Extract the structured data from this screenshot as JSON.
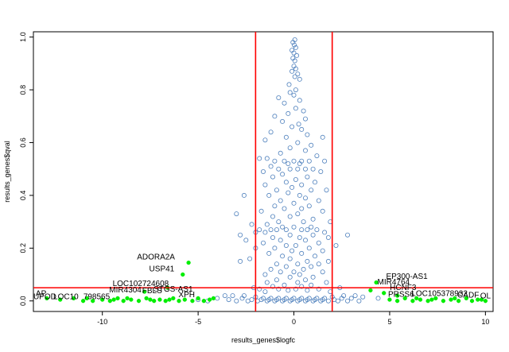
{
  "chart_data": {
    "type": "scatter",
    "title": "",
    "xlabel": "results_genes$logfc",
    "ylabel": "results_genes$qval",
    "xlim": [
      -13.6,
      10.4
    ],
    "ylim": [
      -0.04,
      1.02
    ],
    "x_ticks": [
      -10,
      -5,
      0,
      5,
      10
    ],
    "y_ticks": [
      0.0,
      0.2,
      0.4,
      0.6,
      0.8,
      1.0
    ],
    "x_tick_labels": [
      "-10",
      "-5",
      "0",
      "5",
      "10"
    ],
    "y_tick_labels": [
      "0.0",
      "0.2",
      "0.4",
      "0.6",
      "0.8",
      "1.0"
    ],
    "grid": false,
    "threshold_lines": {
      "logfc": [
        -2,
        2
      ],
      "qval": 0.05,
      "color": "#ff0000"
    },
    "series": [
      {
        "color": "#4f81bd",
        "points": [
          [
            0.05,
            0.99
          ],
          [
            -0.05,
            0.98
          ],
          [
            0.02,
            0.97
          ],
          [
            0.1,
            0.96
          ],
          [
            -0.1,
            0.95
          ],
          [
            0.0,
            0.94
          ],
          [
            0.15,
            0.93
          ],
          [
            -0.05,
            0.92
          ],
          [
            0.05,
            0.91
          ],
          [
            0.0,
            0.89
          ],
          [
            0.1,
            0.88
          ],
          [
            -0.1,
            0.87
          ],
          [
            0.2,
            0.86
          ],
          [
            0.05,
            0.85
          ],
          [
            0.3,
            0.84
          ],
          [
            -0.25,
            0.82
          ],
          [
            0.1,
            0.8
          ],
          [
            -0.2,
            0.79
          ],
          [
            0.0,
            0.78
          ],
          [
            -0.8,
            0.77
          ],
          [
            0.3,
            0.76
          ],
          [
            -0.5,
            0.75
          ],
          [
            0.1,
            0.73
          ],
          [
            0.5,
            0.72
          ],
          [
            -0.3,
            0.71
          ],
          [
            -1.0,
            0.7
          ],
          [
            0.6,
            0.69
          ],
          [
            -0.6,
            0.68
          ],
          [
            0.25,
            0.67
          ],
          [
            -0.1,
            0.66
          ],
          [
            0.4,
            0.65
          ],
          [
            -1.2,
            0.64
          ],
          [
            0.7,
            0.63
          ],
          [
            -0.4,
            0.62
          ],
          [
            1.5,
            0.62
          ],
          [
            -1.5,
            0.61
          ],
          [
            0.2,
            0.6
          ],
          [
            0.9,
            0.59
          ],
          [
            -0.2,
            0.58
          ],
          [
            0.6,
            0.57
          ],
          [
            -0.7,
            0.56
          ],
          [
            1.2,
            0.55
          ],
          [
            -1.4,
            0.54
          ],
          [
            -1.0,
            0.53
          ],
          [
            -0.5,
            0.53
          ],
          [
            0.0,
            0.53
          ],
          [
            0.4,
            0.53
          ],
          [
            0.8,
            0.53
          ],
          [
            1.6,
            0.53
          ],
          [
            -1.8,
            0.54
          ],
          [
            -0.3,
            0.52
          ],
          [
            0.3,
            0.52
          ],
          [
            -1.2,
            0.51
          ],
          [
            -0.8,
            0.5
          ],
          [
            -0.2,
            0.5
          ],
          [
            0.2,
            0.5
          ],
          [
            0.6,
            0.5
          ],
          [
            1.0,
            0.5
          ],
          [
            -1.6,
            0.49
          ],
          [
            1.4,
            0.49
          ],
          [
            -0.6,
            0.48
          ],
          [
            0.7,
            0.47
          ],
          [
            -1.1,
            0.47
          ],
          [
            0.1,
            0.46
          ],
          [
            -0.4,
            0.45
          ],
          [
            1.1,
            0.45
          ],
          [
            -1.5,
            0.44
          ],
          [
            0.4,
            0.44
          ],
          [
            -0.1,
            0.43
          ],
          [
            0.9,
            0.42
          ],
          [
            -0.9,
            0.42
          ],
          [
            1.7,
            0.42
          ],
          [
            -0.3,
            0.41
          ],
          [
            0.3,
            0.4
          ],
          [
            -1.3,
            0.4
          ],
          [
            -2.6,
            0.4
          ],
          [
            0.6,
            0.39
          ],
          [
            -0.7,
            0.38
          ],
          [
            1.3,
            0.38
          ],
          [
            0.0,
            0.37
          ],
          [
            -1.0,
            0.36
          ],
          [
            0.8,
            0.36
          ],
          [
            -0.5,
            0.35
          ],
          [
            0.4,
            0.35
          ],
          [
            -1.7,
            0.34
          ],
          [
            1.5,
            0.34
          ],
          [
            -3.0,
            0.33
          ],
          [
            0.2,
            0.33
          ],
          [
            -0.2,
            0.32
          ],
          [
            -1.1,
            0.32
          ],
          [
            1.0,
            0.31
          ],
          [
            -0.8,
            0.3
          ],
          [
            0.5,
            0.3
          ],
          [
            1.9,
            0.3
          ],
          [
            -1.4,
            0.29
          ],
          [
            -2.2,
            0.29
          ],
          [
            0.0,
            0.28
          ],
          [
            0.9,
            0.28
          ],
          [
            -0.6,
            0.28
          ],
          [
            -1.8,
            0.27
          ],
          [
            -1.2,
            0.27
          ],
          [
            -0.9,
            0.27
          ],
          [
            -0.4,
            0.27
          ],
          [
            0.4,
            0.27
          ],
          [
            0.7,
            0.27
          ],
          [
            1.2,
            0.27
          ],
          [
            -2.0,
            0.26
          ],
          [
            -1.5,
            0.26
          ],
          [
            1.6,
            0.26
          ],
          [
            -2.8,
            0.25
          ],
          [
            -0.2,
            0.25
          ],
          [
            1.0,
            0.25
          ],
          [
            2.8,
            0.25
          ],
          [
            -1.1,
            0.24
          ],
          [
            0.3,
            0.24
          ],
          [
            1.8,
            0.24
          ],
          [
            -2.5,
            0.23
          ],
          [
            -0.7,
            0.23
          ],
          [
            0.6,
            0.23
          ],
          [
            -1.6,
            0.22
          ],
          [
            1.3,
            0.22
          ],
          [
            0.1,
            0.21
          ],
          [
            -0.4,
            0.21
          ],
          [
            2.2,
            0.21
          ],
          [
            -2.0,
            0.2
          ],
          [
            -1.0,
            0.2
          ],
          [
            0.8,
            0.2
          ],
          [
            -0.1,
            0.19
          ],
          [
            1.5,
            0.19
          ],
          [
            -1.3,
            0.18
          ],
          [
            0.4,
            0.18
          ],
          [
            -0.6,
            0.17
          ],
          [
            1.1,
            0.17
          ],
          [
            -2.3,
            0.16
          ],
          [
            -0.2,
            0.16
          ],
          [
            -2.8,
            0.15
          ],
          [
            0.7,
            0.15
          ],
          [
            1.8,
            0.15
          ],
          [
            -0.9,
            0.14
          ],
          [
            0.2,
            0.14
          ],
          [
            1.3,
            0.14
          ],
          [
            -0.4,
            0.13
          ],
          [
            0.9,
            0.13
          ],
          [
            -1.2,
            0.12
          ],
          [
            0.5,
            0.12
          ],
          [
            -0.7,
            0.11
          ],
          [
            0.0,
            0.11
          ],
          [
            1.5,
            0.11
          ],
          [
            -1.5,
            0.1
          ],
          [
            0.3,
            0.1
          ],
          [
            -0.2,
            0.09
          ],
          [
            1.0,
            0.09
          ],
          [
            -0.9,
            0.08
          ],
          [
            0.6,
            0.08
          ],
          [
            -1.4,
            0.07
          ],
          [
            0.2,
            0.07
          ],
          [
            1.7,
            0.07
          ],
          [
            -0.5,
            0.06
          ],
          [
            0.9,
            0.06
          ],
          [
            -1.1,
            0.055
          ],
          [
            0.4,
            0.055
          ],
          [
            2.4,
            0.05
          ],
          [
            -2.1,
            0.05
          ],
          [
            -1.8,
            0.045
          ],
          [
            -0.8,
            0.045
          ],
          [
            0.1,
            0.045
          ],
          [
            1.3,
            0.045
          ],
          [
            -0.3,
            0.04
          ],
          [
            0.7,
            0.04
          ],
          [
            -1.5,
            0.035
          ],
          [
            1.9,
            0.035
          ],
          [
            -3.2,
            0.02
          ],
          [
            -2.6,
            0.02
          ],
          [
            -2.0,
            0.015
          ],
          [
            -1.6,
            0.01
          ],
          [
            -1.2,
            0.01
          ],
          [
            -0.8,
            0.01
          ],
          [
            -0.4,
            0.01
          ],
          [
            0.0,
            0.01
          ],
          [
            0.4,
            0.01
          ],
          [
            0.8,
            0.01
          ],
          [
            1.2,
            0.01
          ],
          [
            1.6,
            0.01
          ],
          [
            2.0,
            0.015
          ],
          [
            2.6,
            0.02
          ],
          [
            3.2,
            0.02
          ],
          [
            -4.0,
            0.01
          ],
          [
            -3.6,
            0.02
          ],
          [
            3.6,
            0.015
          ],
          [
            4.4,
            0.01
          ],
          [
            -5.0,
            0.005
          ],
          [
            -4.5,
            0.0
          ],
          [
            -3.0,
            0.0
          ],
          [
            -2.4,
            0.0
          ],
          [
            -1.9,
            0.0
          ],
          [
            -1.4,
            0.0
          ],
          [
            -1.0,
            0.0
          ],
          [
            -0.6,
            0.0
          ],
          [
            -0.2,
            0.0
          ],
          [
            0.2,
            0.0
          ],
          [
            0.6,
            0.0
          ],
          [
            1.0,
            0.0
          ],
          [
            1.4,
            0.0
          ],
          [
            1.8,
            0.0
          ],
          [
            2.3,
            0.0
          ],
          [
            2.8,
            0.0
          ],
          [
            3.4,
            0.0
          ],
          [
            -2.2,
            0.005
          ],
          [
            -1.7,
            0.005
          ],
          [
            -1.3,
            0.005
          ],
          [
            -0.9,
            0.005
          ],
          [
            -0.5,
            0.005
          ],
          [
            -0.1,
            0.005
          ],
          [
            0.3,
            0.005
          ],
          [
            0.7,
            0.005
          ],
          [
            1.1,
            0.005
          ],
          [
            1.5,
            0.005
          ],
          [
            2.1,
            0.005
          ],
          [
            2.5,
            0.01
          ],
          [
            -2.7,
            0.01
          ],
          [
            3.0,
            0.01
          ],
          [
            -3.4,
            0.005
          ]
        ]
      },
      {
        "color": "#00ee00",
        "points": [
          [
            -5.5,
            0.145
          ],
          [
            -5.8,
            0.1
          ],
          [
            -6.6,
            0.05
          ],
          [
            -7.8,
            0.035
          ],
          [
            -4.2,
            0.01
          ],
          [
            4.3,
            0.07
          ],
          [
            4.0,
            0.04
          ],
          [
            4.7,
            0.03
          ],
          [
            5.4,
            0.02
          ],
          [
            -12.9,
            0.01
          ],
          [
            -11.0,
            0.0
          ],
          [
            -10.5,
            0.0
          ],
          [
            -10.0,
            0.005
          ],
          [
            -9.6,
            0.0
          ],
          [
            -9.2,
            0.01
          ],
          [
            -8.9,
            0.0
          ],
          [
            -8.5,
            0.005
          ],
          [
            -8.1,
            0.0
          ],
          [
            -7.7,
            0.01
          ],
          [
            -7.3,
            0.0
          ],
          [
            -7.0,
            0.005
          ],
          [
            -6.7,
            0.0
          ],
          [
            -6.3,
            0.01
          ],
          [
            -6.0,
            0.0
          ],
          [
            -5.7,
            0.005
          ],
          [
            -5.3,
            0.0
          ],
          [
            -5.0,
            0.01
          ],
          [
            -4.7,
            0.0
          ],
          [
            -4.4,
            0.005
          ],
          [
            5.0,
            0.005
          ],
          [
            5.4,
            0.0
          ],
          [
            5.8,
            0.01
          ],
          [
            6.2,
            0.0
          ],
          [
            6.6,
            0.005
          ],
          [
            7.0,
            0.0
          ],
          [
            7.4,
            0.01
          ],
          [
            7.8,
            0.0
          ],
          [
            8.2,
            0.005
          ],
          [
            8.6,
            0.0
          ],
          [
            9.0,
            0.01
          ],
          [
            9.3,
            0.0
          ],
          [
            9.6,
            0.005
          ],
          [
            10.0,
            0.0
          ],
          [
            -11.5,
            0.01
          ],
          [
            -12.2,
            0.005
          ],
          [
            -10.8,
            0.01
          ],
          [
            -9.4,
            0.005
          ],
          [
            -8.7,
            0.01
          ],
          [
            -7.5,
            0.005
          ],
          [
            -6.5,
            0.005
          ],
          [
            6.4,
            0.01
          ],
          [
            7.2,
            0.005
          ],
          [
            8.4,
            0.01
          ],
          [
            9.8,
            0.005
          ]
        ]
      }
    ],
    "annotations": [
      {
        "text": "ADORA2A",
        "x": -7.2,
        "y": 0.157
      },
      {
        "text": "USP41",
        "x": -6.9,
        "y": 0.112
      },
      {
        "text": "LOC102724608",
        "x": -8.0,
        "y": 0.057
      },
      {
        "text": "MIR4304",
        "x": -8.8,
        "y": 0.032
      },
      {
        "text": "FBLS",
        "x": -7.4,
        "y": 0.03
      },
      {
        "text": "STGS-AS1",
        "x": -6.3,
        "y": 0.035
      },
      {
        "text": "XPH",
        "x": -5.6,
        "y": 0.014
      },
      {
        "text": "AP",
        "x": -13.2,
        "y": 0.018
      },
      {
        "text": "UPOD",
        "x": -13.0,
        "y": 0.007
      },
      {
        "text": "LOC10",
        "x": -11.9,
        "y": 0.007
      },
      {
        "text": "798565",
        "x": -10.3,
        "y": 0.007
      },
      {
        "text": "EP300-AS1",
        "x": 5.9,
        "y": 0.083
      },
      {
        "text": "MIR4764",
        "x": 5.2,
        "y": 0.062
      },
      {
        "text": "HCNF3",
        "x": 5.7,
        "y": 0.042
      },
      {
        "text": "PRSS6",
        "x": 5.6,
        "y": 0.015
      },
      {
        "text": "LOC105378932",
        "x": 7.6,
        "y": 0.018
      },
      {
        "text": "CADF",
        "x": 9.1,
        "y": 0.012
      },
      {
        "text": "OL",
        "x": 10.0,
        "y": 0.009
      }
    ]
  }
}
